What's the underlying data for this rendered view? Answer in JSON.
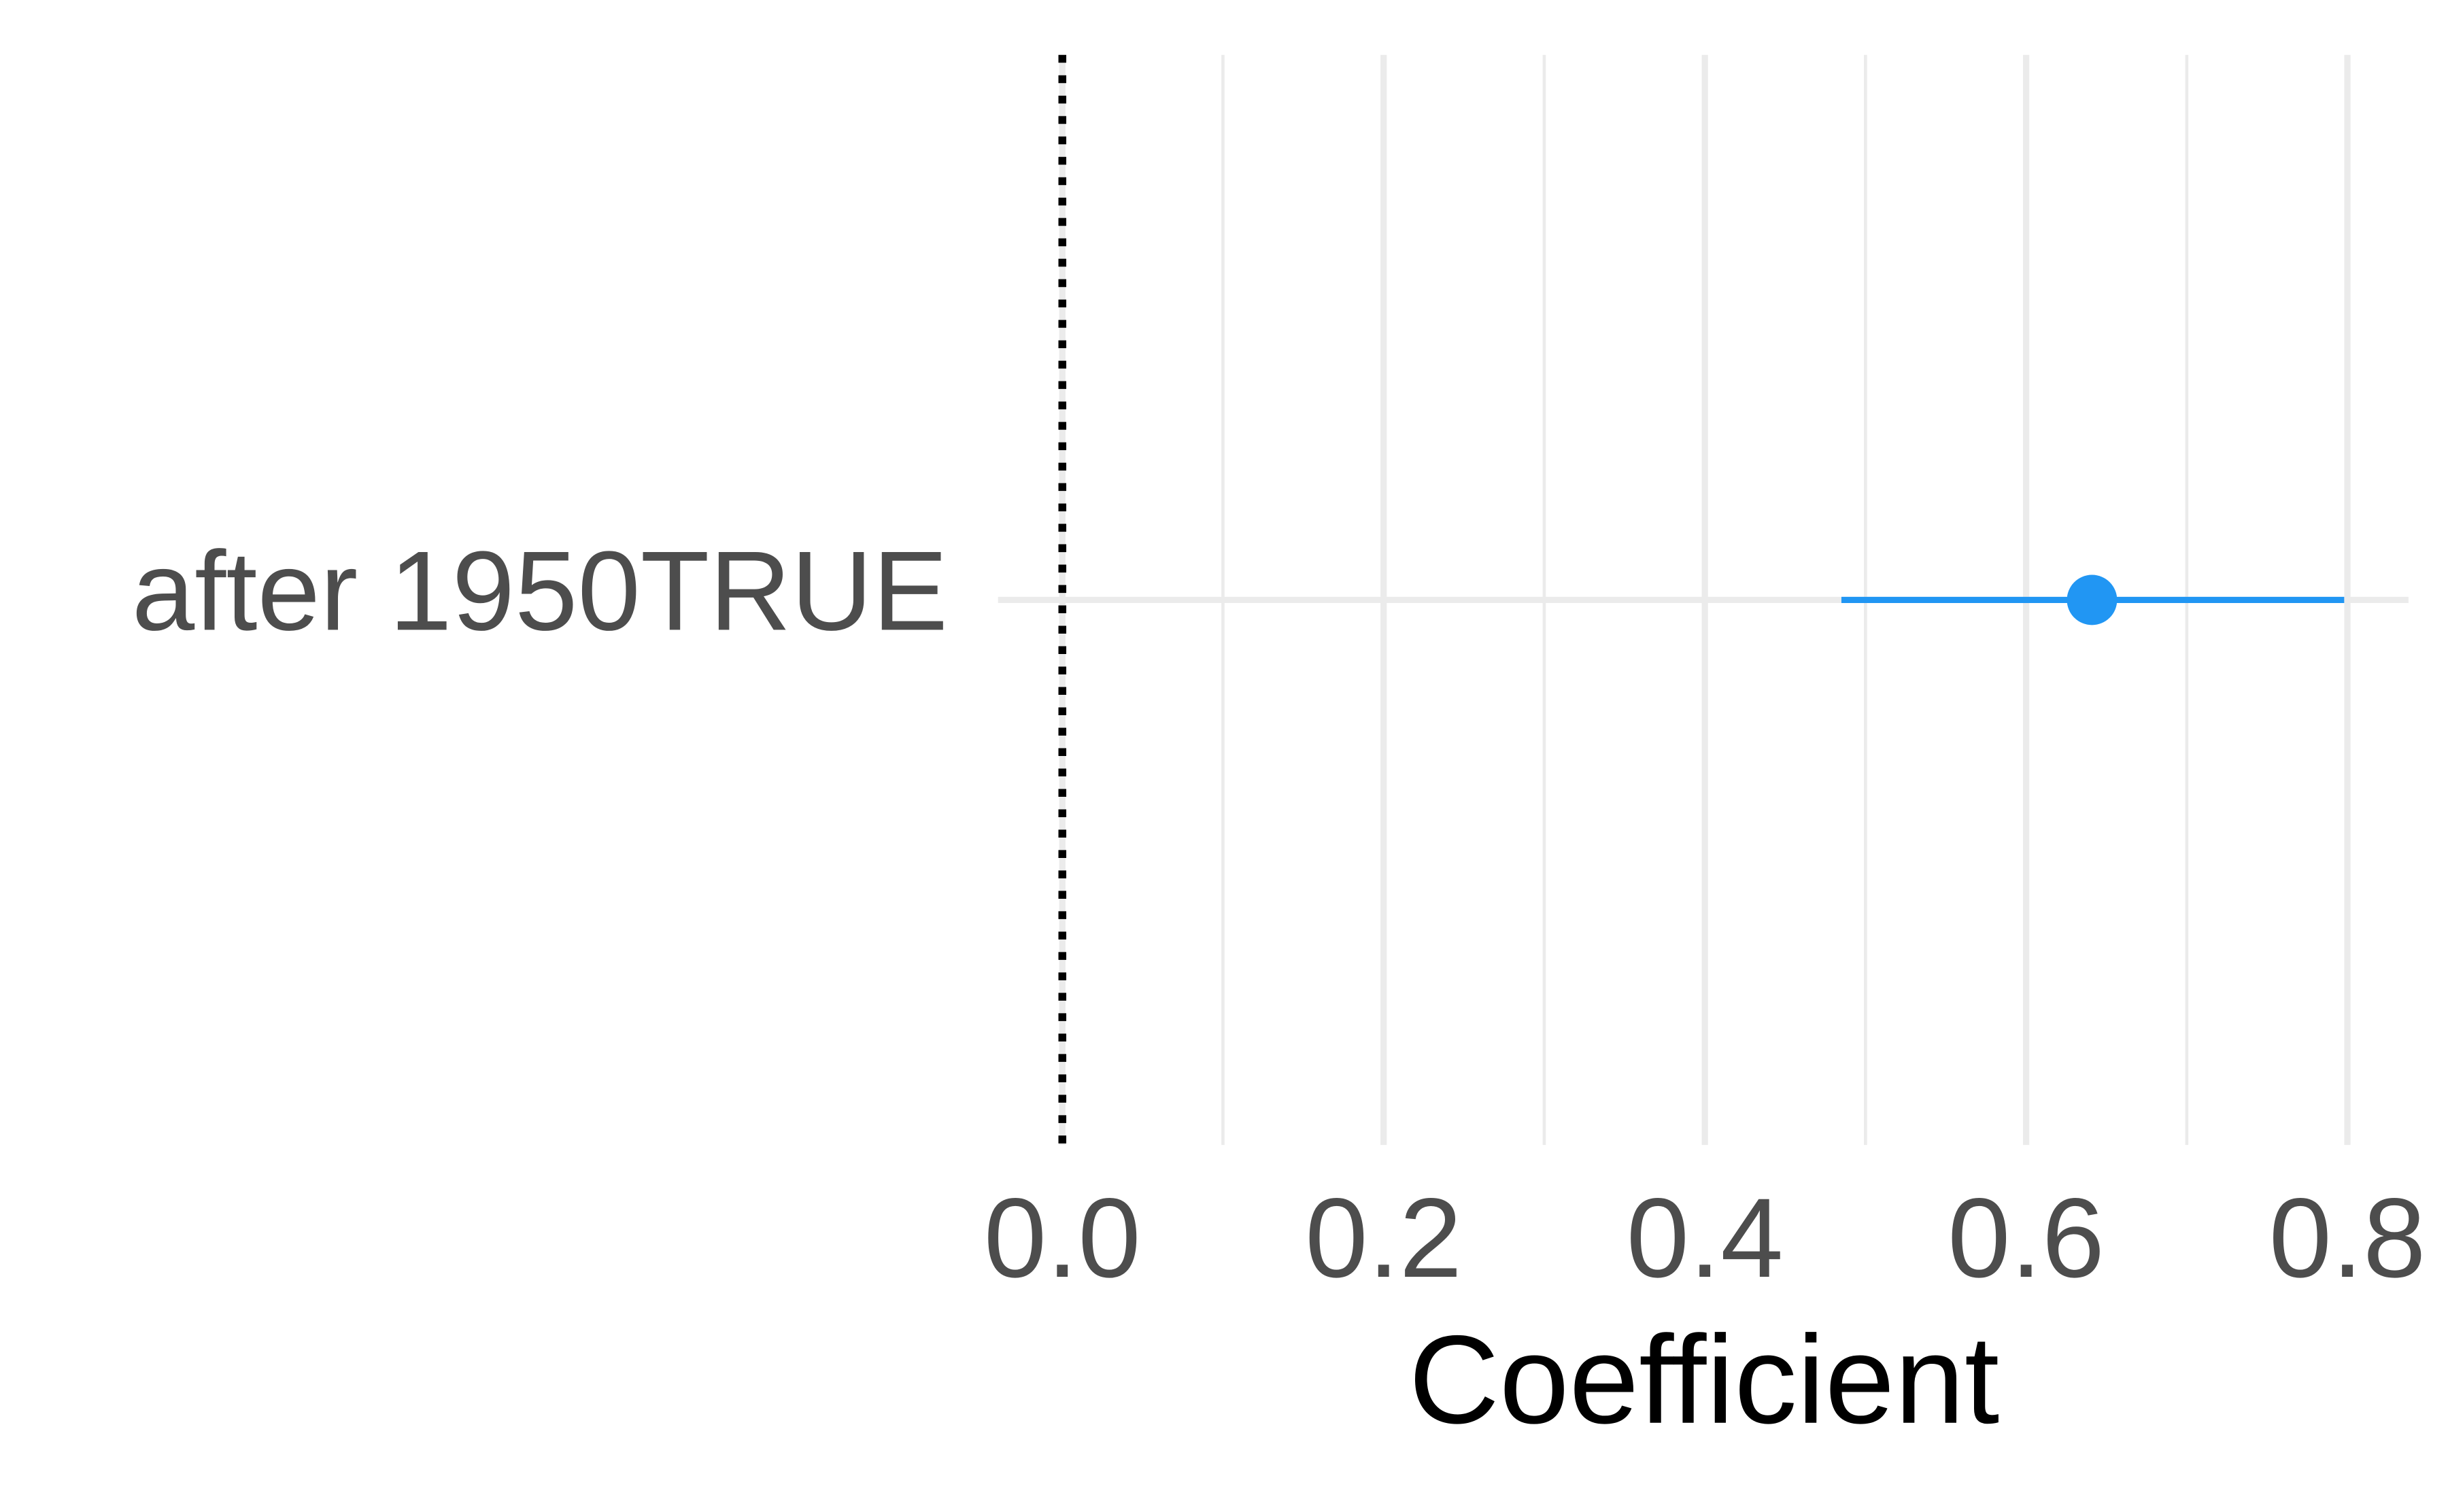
{
  "chart_data": {
    "type": "coefficient",
    "x_label": "Coefficient",
    "categories": [
      "after 1950TRUE"
    ],
    "values": [
      0.641
    ],
    "lower": [
      0.485
    ],
    "upper": [
      0.798
    ],
    "color": "#2196f3",
    "xlim": [
      -0.04,
      0.838
    ],
    "xticks": [
      {
        "value": 0,
        "label": "0.0"
      },
      0.2,
      0.4,
      0.6,
      0.8
    ],
    "xminor": [
      0.1,
      0.3,
      0.5,
      0.7
    ],
    "refline": 0,
    "grid": true
  }
}
